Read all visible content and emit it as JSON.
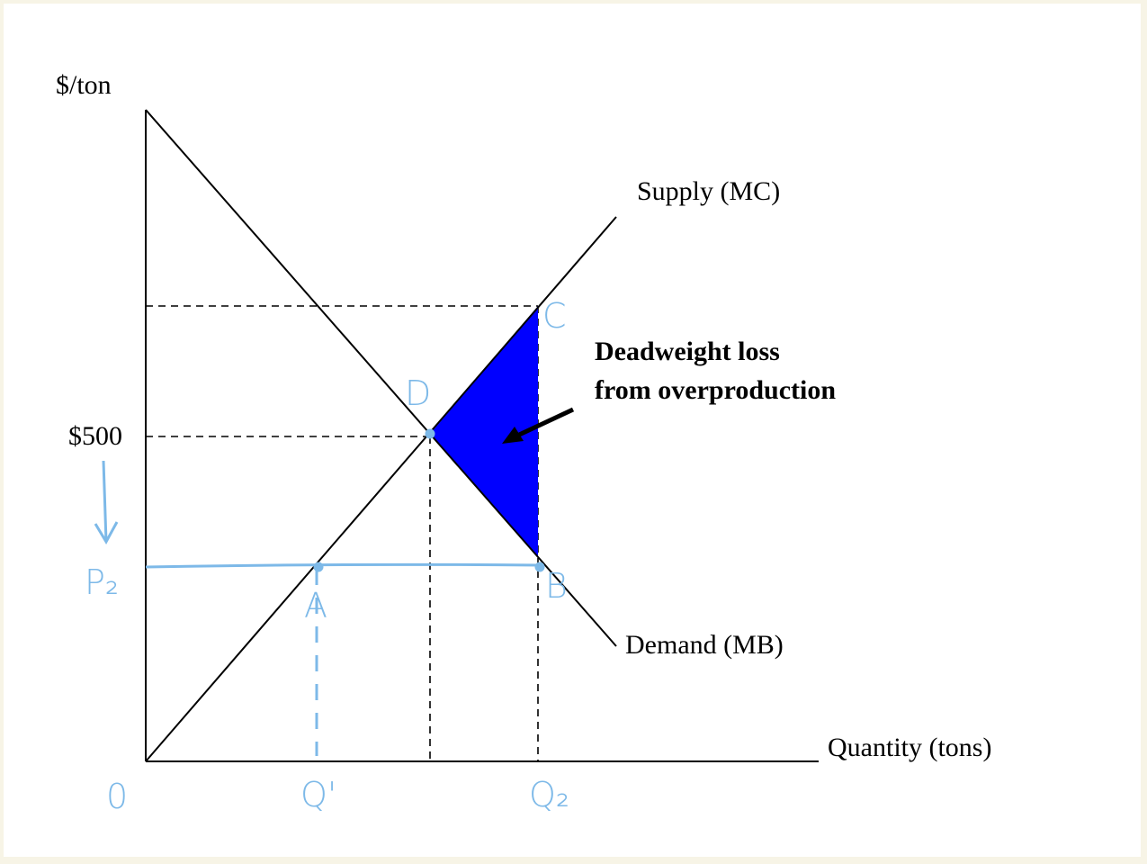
{
  "axes": {
    "y_label": "$/ton",
    "x_label": "Quantity (tons)"
  },
  "curves": {
    "supply": "Supply (MC)",
    "demand": "Demand (MB)"
  },
  "price_label": "$500",
  "annotation": {
    "line1": "Deadweight loss",
    "line2": "from overproduction"
  },
  "handwritten": {
    "c": "C",
    "d": "D",
    "b": "B",
    "a": "A",
    "p2": "P₂",
    "origin": "0",
    "q1": "Q'",
    "q2": "Q₂"
  }
}
